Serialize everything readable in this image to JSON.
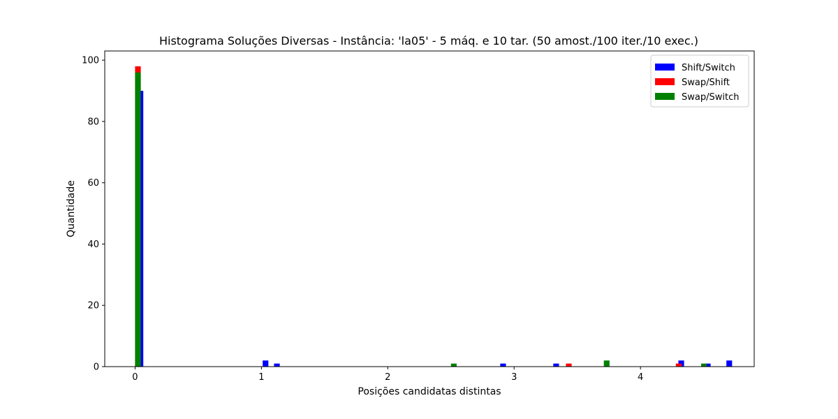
{
  "chart_data": {
    "type": "bar",
    "title": "Histograma Soluções Diversas - Instância: 'la05' - 5 máq. e 10 tar. (50 amost./100 iter./10 exec.)",
    "xlabel": "Posições candidatas distintas",
    "ylabel": "Quantidade",
    "xlim": [
      -0.24,
      4.9
    ],
    "ylim": [
      0,
      103
    ],
    "xticks": [
      0,
      1,
      2,
      3,
      4
    ],
    "yticks": [
      0,
      20,
      40,
      60,
      80,
      100
    ],
    "grid": false,
    "legend_position": "upper right",
    "bar_width": 0.045,
    "series": [
      {
        "name": "Shift/Switch",
        "color": "#0000ff",
        "points": [
          {
            "x": 0.02,
            "y": 90
          },
          {
            "x": 1.01,
            "y": 2
          },
          {
            "x": 1.1,
            "y": 1
          },
          {
            "x": 2.89,
            "y": 1
          },
          {
            "x": 3.31,
            "y": 1
          },
          {
            "x": 4.3,
            "y": 2
          },
          {
            "x": 4.51,
            "y": 1
          },
          {
            "x": 4.68,
            "y": 2
          }
        ]
      },
      {
        "name": "Swap/Shift",
        "color": "#ff0000",
        "points": [
          {
            "x": 0.0,
            "y": 98
          },
          {
            "x": 3.41,
            "y": 1
          },
          {
            "x": 4.28,
            "y": 1
          }
        ]
      },
      {
        "name": "Swap/Switch",
        "color": "#008000",
        "points": [
          {
            "x": 0.0,
            "y": 96
          },
          {
            "x": 2.5,
            "y": 1
          },
          {
            "x": 3.71,
            "y": 2
          },
          {
            "x": 4.48,
            "y": 1
          }
        ]
      }
    ]
  }
}
